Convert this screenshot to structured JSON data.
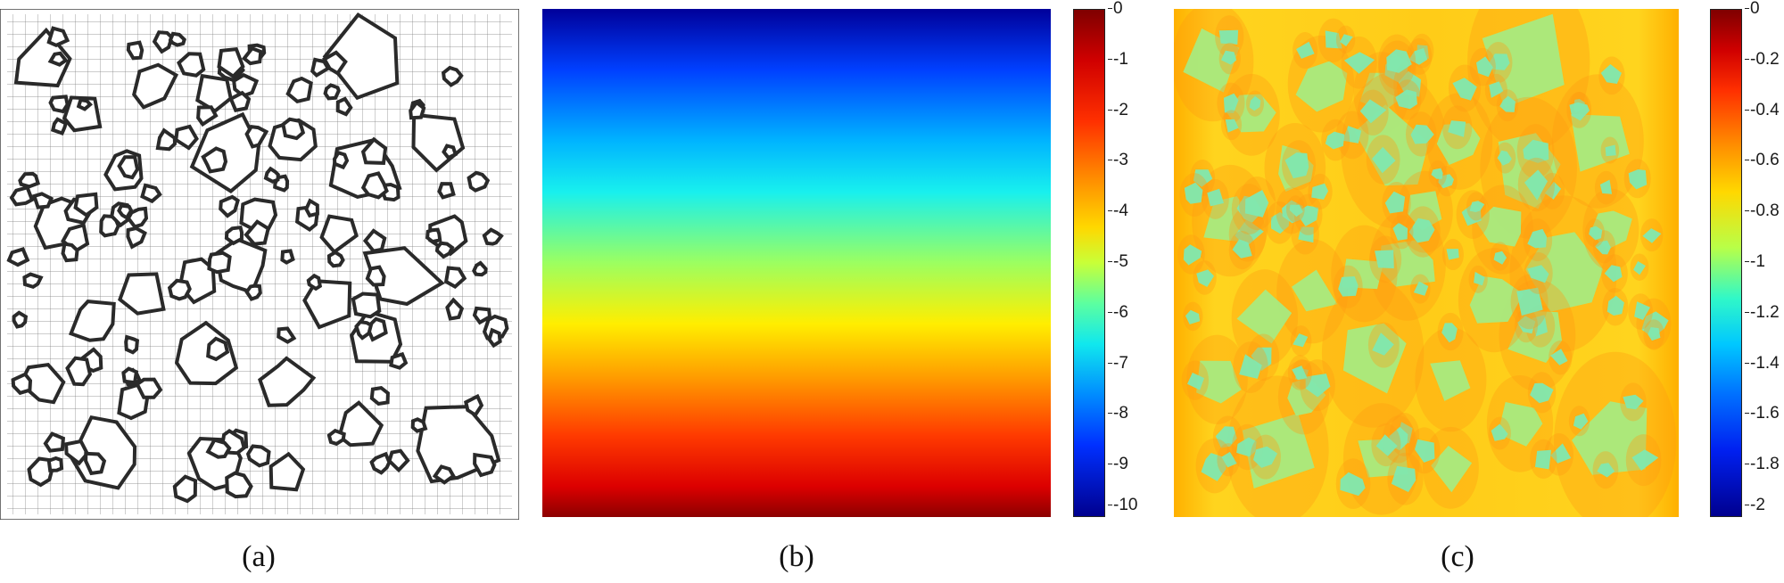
{
  "captions": {
    "a": "(a)",
    "b": "(b)",
    "c": "(c)"
  },
  "colorbar_b": {
    "ticks": [
      "0",
      "-1",
      "-2",
      "-3",
      "-4",
      "-5",
      "-6",
      "-7",
      "-8",
      "-9",
      "-10"
    ],
    "colormap": "jet"
  },
  "colorbar_c": {
    "ticks": [
      "0",
      "-0.2",
      "-0.4",
      "-0.6",
      "-0.8",
      "-1",
      "-1.2",
      "-1.4",
      "-1.6",
      "-1.8",
      "-2"
    ],
    "colormap": "jet"
  },
  "colors": {
    "mesh_line": "#555555",
    "aggregate_outline": "#222222",
    "field_c_base": "#ffd21a",
    "field_c_inclusion": "#a4ec88"
  }
}
